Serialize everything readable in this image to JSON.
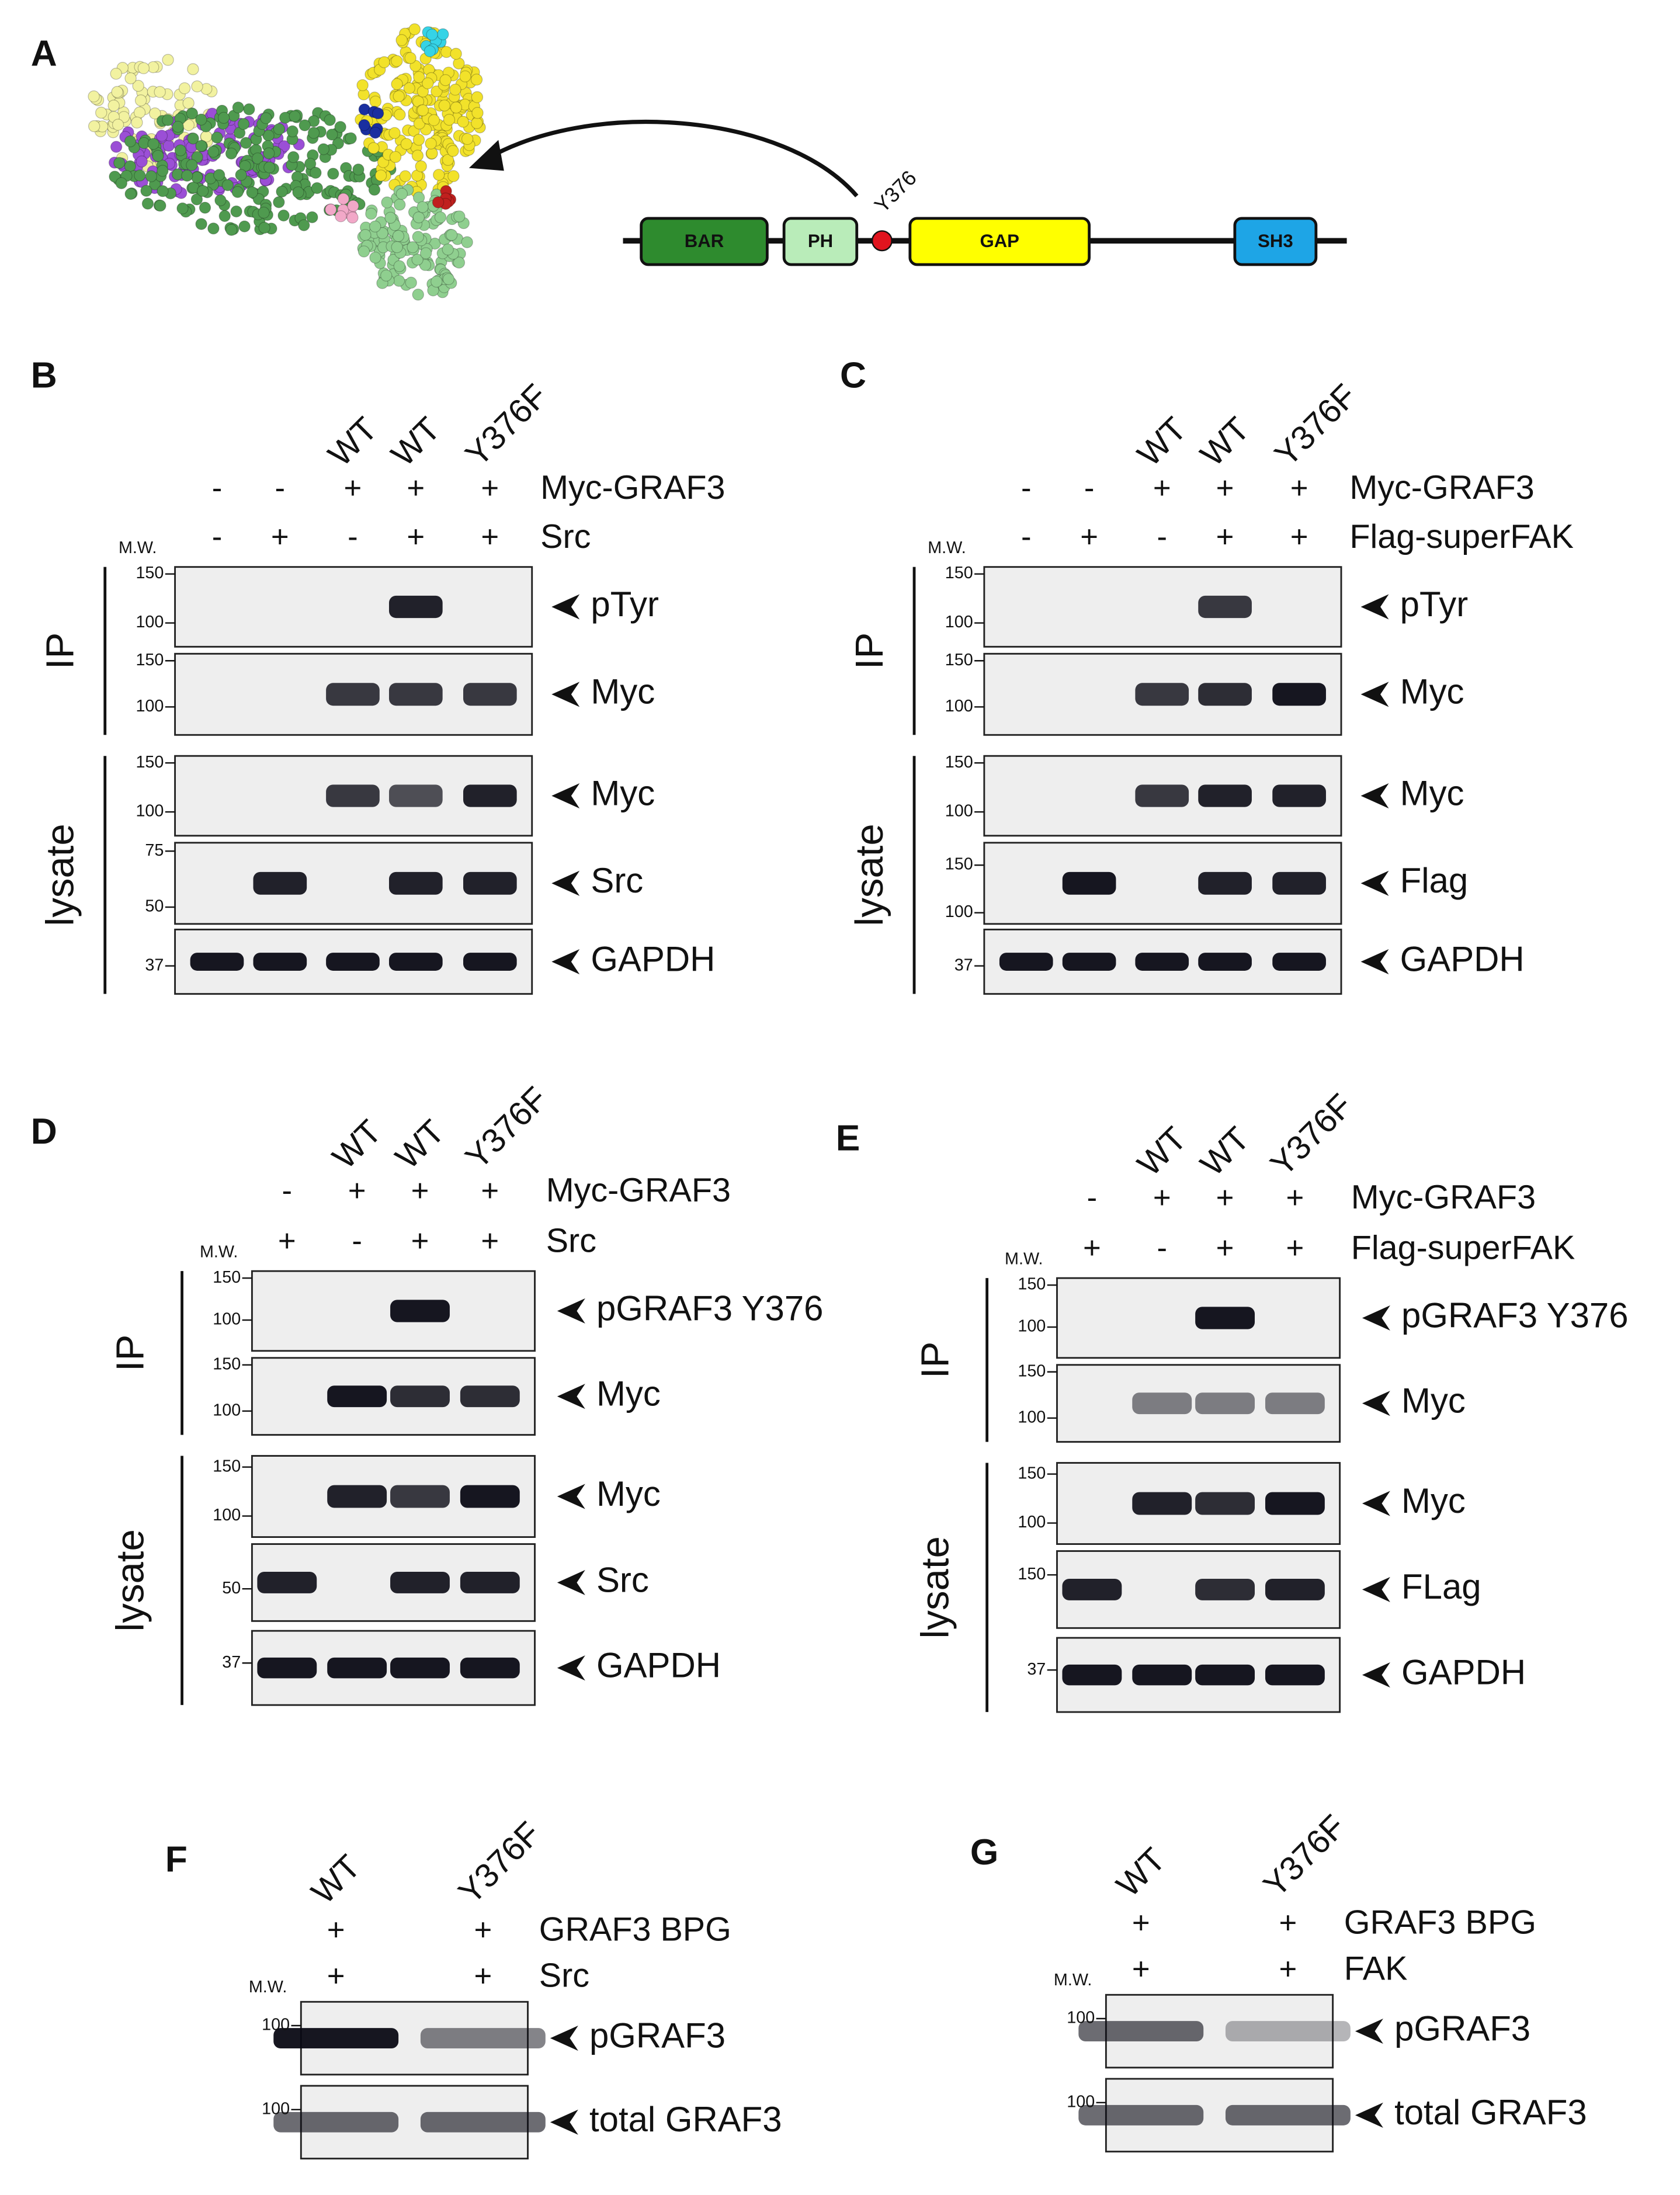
{
  "panel_a": {
    "label": "A",
    "site": "Y376",
    "domains": [
      "BAR",
      "PH",
      "GAP",
      "SH3"
    ]
  },
  "panels": [
    {
      "label": "B",
      "lanes": [
        "WT",
        "WT",
        "Y376F"
      ],
      "conditions": [
        {
          "name": "Myc-GRAF3",
          "signs": [
            "-",
            "-",
            "+",
            "+",
            "+"
          ]
        },
        {
          "name": "Src",
          "signs": [
            "-",
            "+",
            "-",
            "+",
            "+"
          ]
        }
      ],
      "mw_title": "M.W.",
      "groups": [
        {
          "label": "IP",
          "blots": [
            {
              "label": "pTyr",
              "mw": [
                "150",
                "100"
              ]
            },
            {
              "label": "Myc",
              "mw": [
                "150",
                "100"
              ]
            }
          ]
        },
        {
          "label": "lysate",
          "blots": [
            {
              "label": "Myc",
              "mw": [
                "150",
                "100"
              ]
            },
            {
              "label": "Src",
              "mw": [
                "75",
                "50"
              ]
            },
            {
              "label": "GAPDH",
              "mw": [
                "37"
              ]
            }
          ]
        }
      ]
    },
    {
      "label": "C",
      "lanes": [
        "WT",
        "WT",
        "Y376F"
      ],
      "conditions": [
        {
          "name": "Myc-GRAF3",
          "signs": [
            "-",
            "-",
            "+",
            "+",
            "+"
          ]
        },
        {
          "name": "Flag-superFAK",
          "signs": [
            "-",
            "+",
            "-",
            "+",
            "+"
          ]
        }
      ],
      "mw_title": "M.W.",
      "groups": [
        {
          "label": "IP",
          "blots": [
            {
              "label": "pTyr",
              "mw": [
                "150",
                "100"
              ]
            },
            {
              "label": "Myc",
              "mw": [
                "150",
                "100"
              ]
            }
          ]
        },
        {
          "label": "lysate",
          "blots": [
            {
              "label": "Myc",
              "mw": [
                "150",
                "100"
              ]
            },
            {
              "label": "Flag",
              "mw": [
                "150",
                "100"
              ]
            },
            {
              "label": "GAPDH",
              "mw": [
                "37"
              ]
            }
          ]
        }
      ]
    },
    {
      "label": "D",
      "lanes": [
        "WT",
        "WT",
        "Y376F"
      ],
      "conditions": [
        {
          "name": "Myc-GRAF3",
          "signs": [
            "-",
            "+",
            "+",
            "+"
          ]
        },
        {
          "name": "Src",
          "signs": [
            "+",
            "-",
            "+",
            "+"
          ]
        }
      ],
      "mw_title": "M.W.",
      "groups": [
        {
          "label": "IP",
          "blots": [
            {
              "label": "pGRAF3 Y376",
              "mw": [
                "150",
                "100"
              ]
            },
            {
              "label": "Myc",
              "mw": [
                "150",
                "100"
              ]
            }
          ]
        },
        {
          "label": "lysate",
          "blots": [
            {
              "label": "Myc",
              "mw": [
                "150",
                "100"
              ]
            },
            {
              "label": "Src",
              "mw": [
                "50"
              ]
            },
            {
              "label": "GAPDH",
              "mw": [
                "37"
              ]
            }
          ]
        }
      ]
    },
    {
      "label": "E",
      "lanes": [
        "WT",
        "WT",
        "Y376F"
      ],
      "conditions": [
        {
          "name": "Myc-GRAF3",
          "signs": [
            "-",
            "+",
            "+",
            "+"
          ]
        },
        {
          "name": "Flag-superFAK",
          "signs": [
            "+",
            "-",
            "+",
            "+"
          ]
        }
      ],
      "mw_title": "M.W.",
      "groups": [
        {
          "label": "IP",
          "blots": [
            {
              "label": "pGRAF3 Y376",
              "mw": [
                "150",
                "100"
              ]
            },
            {
              "label": "Myc",
              "mw": [
                "150",
                "100"
              ]
            }
          ]
        },
        {
          "label": "lysate",
          "blots": [
            {
              "label": "Myc",
              "mw": [
                "150",
                "100"
              ]
            },
            {
              "label": "FLag",
              "mw": [
                "150"
              ]
            },
            {
              "label": "GAPDH",
              "mw": [
                "37"
              ]
            }
          ]
        }
      ]
    },
    {
      "label": "F",
      "lanes": [
        "WT",
        "Y376F"
      ],
      "conditions": [
        {
          "name": "GRAF3 BPG",
          "signs": [
            "+",
            "+"
          ]
        },
        {
          "name": "Src",
          "signs": [
            "+",
            "+"
          ]
        }
      ],
      "mw_title": "M.W.",
      "groups": [
        {
          "blots": [
            {
              "label": "pGRAF3",
              "mw": [
                "100"
              ]
            },
            {
              "label": "total GRAF3",
              "mw": [
                "100"
              ]
            }
          ]
        }
      ]
    },
    {
      "label": "G",
      "lanes": [
        "WT",
        "Y376F"
      ],
      "conditions": [
        {
          "name": "GRAF3 BPG",
          "signs": [
            "+",
            "+"
          ]
        },
        {
          "name": "FAK",
          "signs": [
            "+",
            "+"
          ]
        }
      ],
      "mw_title": "M.W.",
      "groups": [
        {
          "blots": [
            {
              "label": "pGRAF3",
              "mw": [
                "100"
              ]
            },
            {
              "label": "total GRAF3",
              "mw": [
                "100"
              ]
            }
          ]
        }
      ]
    }
  ]
}
